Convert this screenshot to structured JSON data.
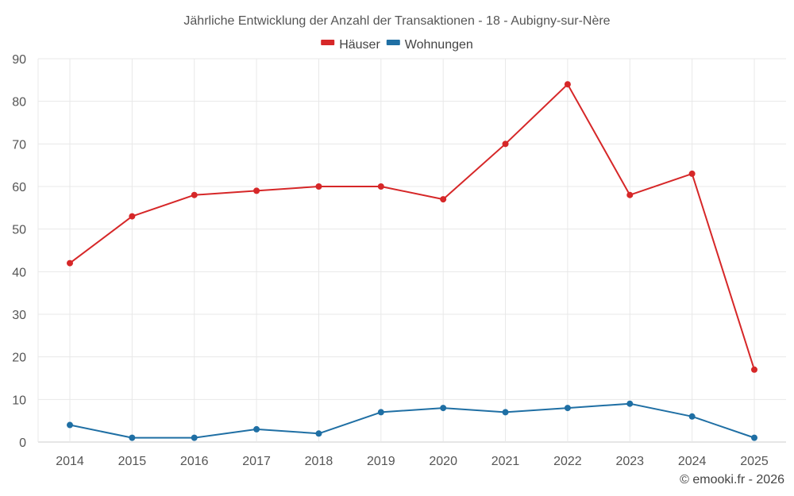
{
  "chart_data": {
    "type": "line",
    "title": "Jährliche Entwicklung der Anzahl der Transaktionen - 18 - Aubigny-sur-Nère",
    "xlabel": "",
    "ylabel": "",
    "categories": [
      "2014",
      "2015",
      "2016",
      "2017",
      "2018",
      "2019",
      "2020",
      "2021",
      "2022",
      "2023",
      "2024",
      "2025"
    ],
    "ylim": [
      0,
      90
    ],
    "yticks": [
      0,
      10,
      20,
      30,
      40,
      50,
      60,
      70,
      80,
      90
    ],
    "grid": true,
    "legend_position": "top-center",
    "series": [
      {
        "name": "Häuser",
        "color": "#d62728",
        "values": [
          42,
          53,
          58,
          59,
          60,
          60,
          57,
          70,
          84,
          58,
          63,
          17
        ]
      },
      {
        "name": "Wohnungen",
        "color": "#1f6fa4",
        "values": [
          4,
          1,
          1,
          3,
          2,
          7,
          8,
          7,
          8,
          9,
          6,
          1
        ]
      }
    ]
  },
  "credit": "© emooki.fr - 2026"
}
